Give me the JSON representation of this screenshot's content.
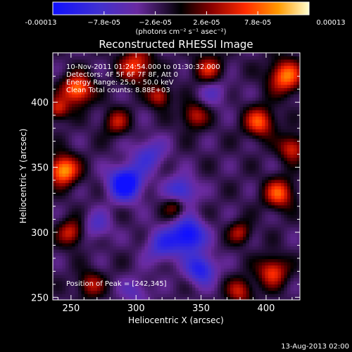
{
  "chart_data": {
    "type": "heatmap",
    "title": "Reconstructed RHESSI Image",
    "xlabel": "Heliocentric X (arcsec)",
    "ylabel": "Heliocentric Y (arcsec)",
    "xlim": [
      236,
      426
    ],
    "ylim": [
      248,
      438
    ],
    "x_ticks": [
      250,
      300,
      350,
      400
    ],
    "y_ticks": [
      250,
      300,
      350,
      400
    ],
    "colorbar": {
      "min": -0.00013,
      "max": 0.00013,
      "tick_labels": [
        "-0.00013",
        "−7.8e-05",
        "−2.6e-05",
        "2.6e-05",
        "7.8e-05",
        "0.00013"
      ],
      "units_label": "(photons cm⁻² s⁻¹ asec⁻²)",
      "colormap": [
        "#1010ff",
        "#4030d0",
        "#6a2aa0",
        "#000000",
        "#8a0000",
        "#ff2a00",
        "#ff9a00",
        "#ffffd0"
      ]
    },
    "annotations": [
      "10-Nov-2011 01:24:54.000 to 01:30:32.000",
      "Detectors: 4F 5F 6F 7F 8F, Att 0",
      "Energy Range: 25.0 - 50.0 keV",
      "Clean    Total counts: 8.88E+03"
    ],
    "peak_label": "Position of Peak = [242,345]",
    "positive_blobs": [
      {
        "x": 244,
        "y": 348,
        "v": 1.0,
        "s": 8
      },
      {
        "x": 255,
        "y": 410,
        "v": 0.9,
        "s": 8
      },
      {
        "x": 300,
        "y": 428,
        "v": 0.7,
        "s": 9
      },
      {
        "x": 356,
        "y": 425,
        "v": 0.6,
        "s": 8
      },
      {
        "x": 415,
        "y": 420,
        "v": 0.85,
        "s": 9
      },
      {
        "x": 395,
        "y": 385,
        "v": 0.75,
        "s": 8
      },
      {
        "x": 345,
        "y": 390,
        "v": 0.55,
        "s": 7
      },
      {
        "x": 285,
        "y": 385,
        "v": 0.5,
        "s": 7
      },
      {
        "x": 250,
        "y": 300,
        "v": 0.6,
        "s": 7
      },
      {
        "x": 410,
        "y": 330,
        "v": 0.75,
        "s": 8
      },
      {
        "x": 405,
        "y": 270,
        "v": 0.7,
        "s": 8
      },
      {
        "x": 330,
        "y": 320,
        "v": 0.45,
        "s": 6
      },
      {
        "x": 380,
        "y": 255,
        "v": 0.55,
        "s": 7
      },
      {
        "x": 265,
        "y": 260,
        "v": 0.5,
        "s": 7
      },
      {
        "x": 420,
        "y": 365,
        "v": 0.65,
        "s": 7
      },
      {
        "x": 318,
        "y": 405,
        "v": 0.6,
        "s": 6
      },
      {
        "x": 380,
        "y": 300,
        "v": 0.5,
        "s": 6
      },
      {
        "x": 240,
        "y": 395,
        "v": 0.6,
        "s": 6
      }
    ],
    "negative_blobs": [
      {
        "x": 292,
        "y": 338,
        "v": -1.0,
        "s": 9
      },
      {
        "x": 335,
        "y": 332,
        "v": -0.6,
        "s": 8
      },
      {
        "x": 340,
        "y": 298,
        "v": -0.9,
        "s": 9
      },
      {
        "x": 350,
        "y": 272,
        "v": -0.7,
        "s": 8
      },
      {
        "x": 320,
        "y": 290,
        "v": -0.5,
        "s": 9
      },
      {
        "x": 310,
        "y": 360,
        "v": -0.45,
        "s": 9
      },
      {
        "x": 270,
        "y": 305,
        "v": -0.35,
        "s": 8
      },
      {
        "x": 300,
        "y": 255,
        "v": -0.3,
        "s": 8
      },
      {
        "x": 360,
        "y": 410,
        "v": -0.3,
        "s": 9
      }
    ]
  },
  "footer_date": "13-Aug-2013 02:00"
}
